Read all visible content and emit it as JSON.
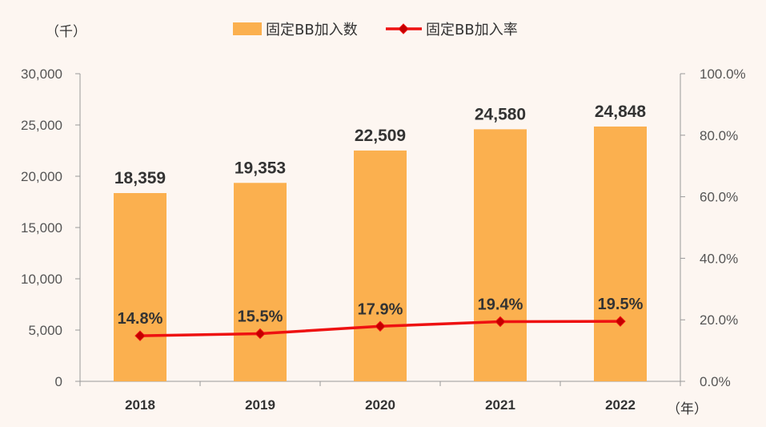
{
  "chart_data": {
    "type": "bar",
    "categories": [
      "2018",
      "2019",
      "2020",
      "2021",
      "2022"
    ],
    "series": [
      {
        "name": "固定BB加入数",
        "type": "bar",
        "axis": "left",
        "values": [
          18359,
          19353,
          22509,
          24580,
          24848
        ],
        "labels": [
          "18,359",
          "19,353",
          "22,509",
          "24,580",
          "24,848"
        ],
        "color": "#fbb04f"
      },
      {
        "name": "固定BB加入率",
        "type": "line",
        "axis": "right",
        "values": [
          14.8,
          15.5,
          17.9,
          19.4,
          19.5
        ],
        "labels": [
          "14.8%",
          "15.5%",
          "17.9%",
          "19.4%",
          "19.5%"
        ],
        "color": "#ee1111",
        "marker_color": "#c40000"
      }
    ],
    "left_axis": {
      "unit": "（千）",
      "ylim": [
        0,
        30000
      ],
      "ticks": [
        "0",
        "5,000",
        "10,000",
        "15,000",
        "20,000",
        "25,000",
        "30,000"
      ]
    },
    "right_axis": {
      "ylim": [
        0,
        100
      ],
      "ticks": [
        "0.0%",
        "20.0%",
        "40.0%",
        "60.0%",
        "80.0%",
        "100.0%"
      ]
    },
    "x_unit": "（年）",
    "grid": false,
    "legend_position": "top-center",
    "axis_color": "#999999"
  }
}
